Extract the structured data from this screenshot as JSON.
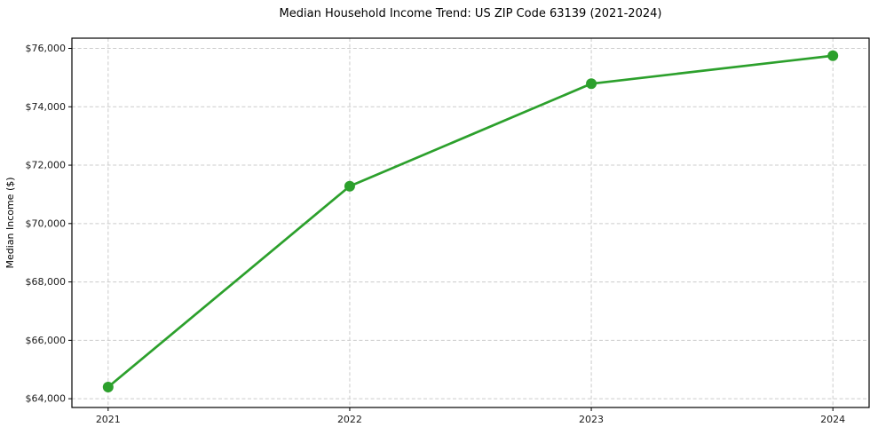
{
  "chart_data": {
    "type": "line",
    "title": "Median Household Income Trend: US ZIP Code 63139 (2021-2024)",
    "xlabel": "",
    "ylabel": "Median Income ($)",
    "categories": [
      "2021",
      "2022",
      "2023",
      "2024"
    ],
    "x": [
      2021,
      2022,
      2023,
      2024
    ],
    "series": [
      {
        "name": "Median Income",
        "values": [
          64400,
          71280,
          74790,
          75750
        ],
        "color": "#2ca02c",
        "marker": "circle"
      }
    ],
    "xlim": [
      2020.85,
      2024.15
    ],
    "ylim": [
      63700,
      76350
    ],
    "yticks": [
      64000,
      66000,
      68000,
      70000,
      72000,
      74000,
      76000
    ],
    "ytick_labels": [
      "$64,000",
      "$66,000",
      "$68,000",
      "$70,000",
      "$72,000",
      "$74,000",
      "$76,000"
    ],
    "xtick_labels": [
      "2021",
      "2022",
      "2023",
      "2024"
    ],
    "grid": true,
    "legend": "none",
    "line_width": 2.7,
    "marker_size": 6
  }
}
